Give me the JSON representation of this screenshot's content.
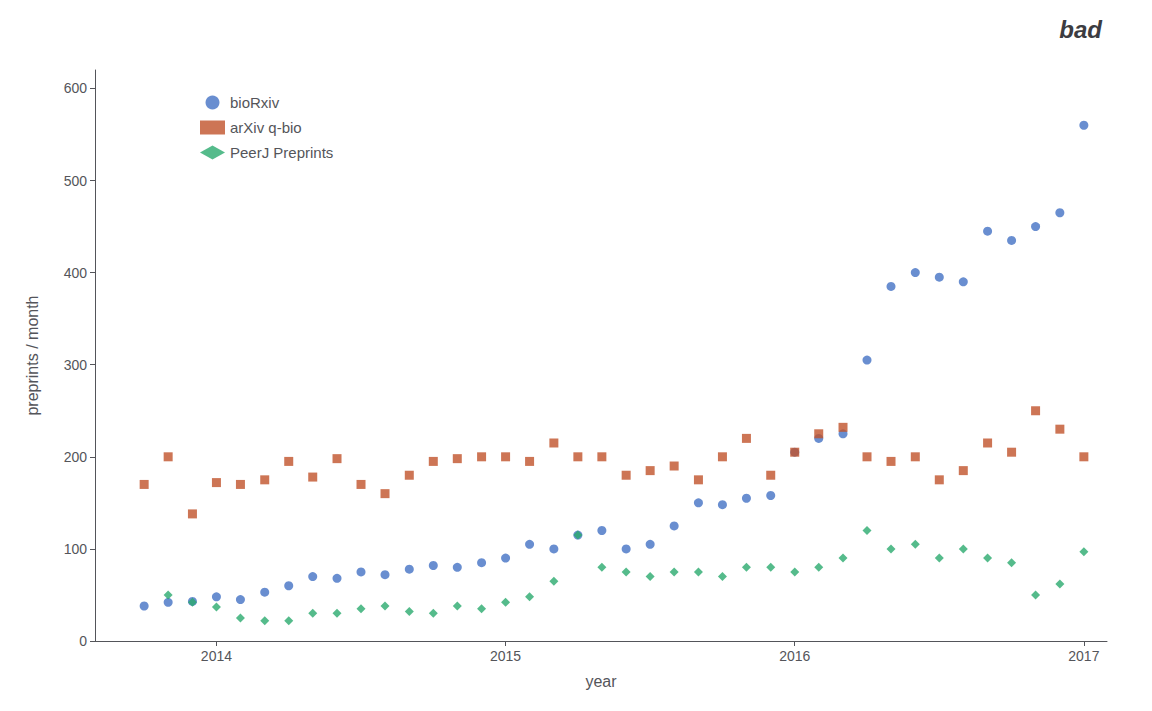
{
  "chart_data": {
    "type": "scatter",
    "title": "bad",
    "xlabel": "year",
    "ylabel": "preprints / month",
    "xlim": [
      2013.58,
      2017.08
    ],
    "xticks": [
      2014,
      2015,
      2016,
      2017
    ],
    "ylim": [
      0,
      620
    ],
    "yticks": [
      0,
      100,
      200,
      300,
      400,
      500,
      600
    ],
    "grid": false,
    "legend": "upper left",
    "series": [
      {
        "name": "bioRxiv",
        "color": "#4472c4",
        "marker": "circle",
        "x": [
          2013.75,
          2013.833,
          2013.917,
          2014.0,
          2014.083,
          2014.167,
          2014.25,
          2014.333,
          2014.417,
          2014.5,
          2014.583,
          2014.667,
          2014.75,
          2014.833,
          2014.917,
          2015.0,
          2015.083,
          2015.167,
          2015.25,
          2015.333,
          2015.417,
          2015.5,
          2015.583,
          2015.667,
          2015.75,
          2015.833,
          2015.917,
          2016.0,
          2016.083,
          2016.167,
          2016.25,
          2016.333,
          2016.417,
          2016.5,
          2016.583,
          2016.667,
          2016.75,
          2016.833,
          2016.917,
          2017.0
        ],
        "values": [
          38,
          42,
          43,
          48,
          45,
          53,
          60,
          70,
          68,
          75,
          72,
          78,
          82,
          80,
          85,
          90,
          105,
          100,
          115,
          120,
          100,
          105,
          125,
          150,
          148,
          155,
          158,
          205,
          220,
          225,
          305,
          385,
          400,
          395,
          390,
          445,
          435,
          450,
          465,
          560
        ]
      },
      {
        "name": "arXiv q-bio",
        "color": "#c0522a",
        "marker": "square",
        "x": [
          2013.75,
          2013.833,
          2013.917,
          2014.0,
          2014.083,
          2014.167,
          2014.25,
          2014.333,
          2014.417,
          2014.5,
          2014.583,
          2014.667,
          2014.75,
          2014.833,
          2014.917,
          2015.0,
          2015.083,
          2015.167,
          2015.25,
          2015.333,
          2015.417,
          2015.5,
          2015.583,
          2015.667,
          2015.75,
          2015.833,
          2015.917,
          2016.0,
          2016.083,
          2016.167,
          2016.25,
          2016.333,
          2016.417,
          2016.5,
          2016.583,
          2016.667,
          2016.75,
          2016.833,
          2016.917,
          2017.0
        ],
        "values": [
          170,
          200,
          138,
          172,
          170,
          175,
          195,
          178,
          198,
          170,
          160,
          180,
          195,
          198,
          200,
          200,
          195,
          215,
          200,
          200,
          180,
          185,
          190,
          175,
          200,
          220,
          180,
          205,
          225,
          232,
          200,
          195,
          200,
          175,
          185,
          215,
          205,
          250,
          230,
          200
        ]
      },
      {
        "name": "PeerJ Preprints",
        "color": "#2aaa6e",
        "marker": "diamond",
        "x": [
          2013.833,
          2013.917,
          2014.0,
          2014.083,
          2014.167,
          2014.25,
          2014.333,
          2014.417,
          2014.5,
          2014.583,
          2014.667,
          2014.75,
          2014.833,
          2014.917,
          2015.0,
          2015.083,
          2015.167,
          2015.25,
          2015.333,
          2015.417,
          2015.5,
          2015.583,
          2015.667,
          2015.75,
          2015.833,
          2015.917,
          2016.0,
          2016.083,
          2016.167,
          2016.25,
          2016.333,
          2016.417,
          2016.5,
          2016.583,
          2016.667,
          2016.75,
          2016.833,
          2016.917,
          2017.0
        ],
        "values": [
          50,
          42,
          37,
          25,
          22,
          22,
          30,
          30,
          35,
          38,
          32,
          30,
          38,
          35,
          42,
          48,
          65,
          115,
          80,
          75,
          70,
          75,
          75,
          70,
          80,
          80,
          75,
          80,
          90,
          120,
          100,
          105,
          90,
          100,
          90,
          85,
          50,
          62,
          97
        ]
      }
    ]
  }
}
